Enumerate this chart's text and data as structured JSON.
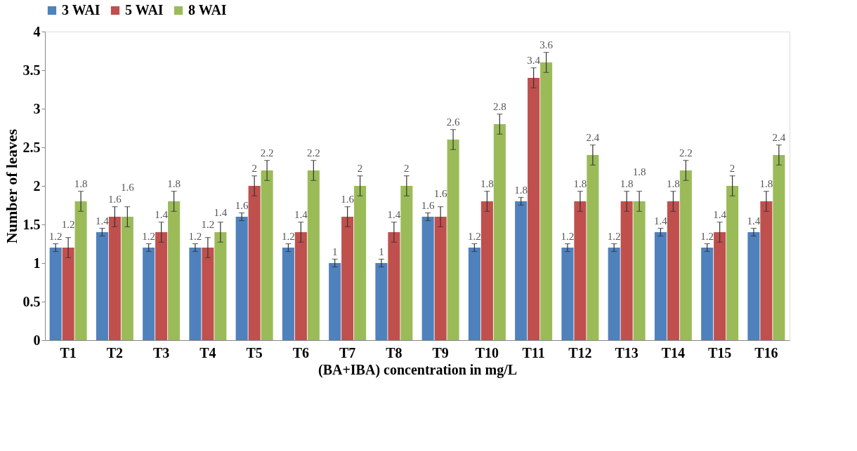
{
  "chart_data": {
    "type": "bar",
    "xlabel": "(BA+IBA) concentration in mg/L",
    "ylabel": "Number of leaves",
    "categories": [
      "T1",
      "T2",
      "T3",
      "T4",
      "T5",
      "T6",
      "T7",
      "T8",
      "T9",
      "T10",
      "T11",
      "T12",
      "T13",
      "T14",
      "T15",
      "T16"
    ],
    "series": [
      {
        "name": "3 WAI",
        "color": "#4f81bd",
        "values": [
          1.2,
          1.4,
          1.2,
          1.2,
          1.6,
          1.2,
          1,
          1,
          1.6,
          1.2,
          1.8,
          1.2,
          1.2,
          1.4,
          1.2,
          1.4
        ],
        "errors": [
          0.05,
          0.05,
          0.05,
          0.05,
          0.05,
          0.05,
          0.05,
          0.05,
          0.05,
          0.05,
          0.05,
          0.05,
          0.05,
          0.05,
          0.05,
          0.05
        ]
      },
      {
        "name": "5 WAI",
        "color": "#c0504d",
        "values": [
          1.2,
          1.6,
          1.4,
          1.2,
          2,
          1.4,
          1.6,
          1.4,
          1.6,
          1.8,
          3.4,
          1.8,
          1.8,
          1.8,
          1.4,
          1.8
        ],
        "errors": [
          0.13,
          0.13,
          0.13,
          0.13,
          0.13,
          0.13,
          0.13,
          0.13,
          0.13,
          0.13,
          0.13,
          0.13,
          0.13,
          0.13,
          0.13,
          0.13
        ]
      },
      {
        "name": "8 WAI",
        "color": "#9bbb59",
        "values": [
          1.8,
          1.6,
          1.8,
          1.4,
          2.2,
          2.2,
          2,
          2,
          2.6,
          2.8,
          3.6,
          2.4,
          1.8,
          2.2,
          2,
          2.4
        ],
        "errors": [
          0.13,
          0.13,
          0.13,
          0.13,
          0.13,
          0.13,
          0.13,
          0.13,
          0.13,
          0.13,
          0.13,
          0.13,
          0.13,
          0.13,
          0.13,
          0.13
        ]
      }
    ],
    "ylim": [
      0,
      4
    ],
    "yticks": [
      0,
      0.5,
      1,
      1.5,
      2,
      2.5,
      3,
      3.5,
      4
    ],
    "data_labels": true,
    "grid": false,
    "legend": "top"
  }
}
